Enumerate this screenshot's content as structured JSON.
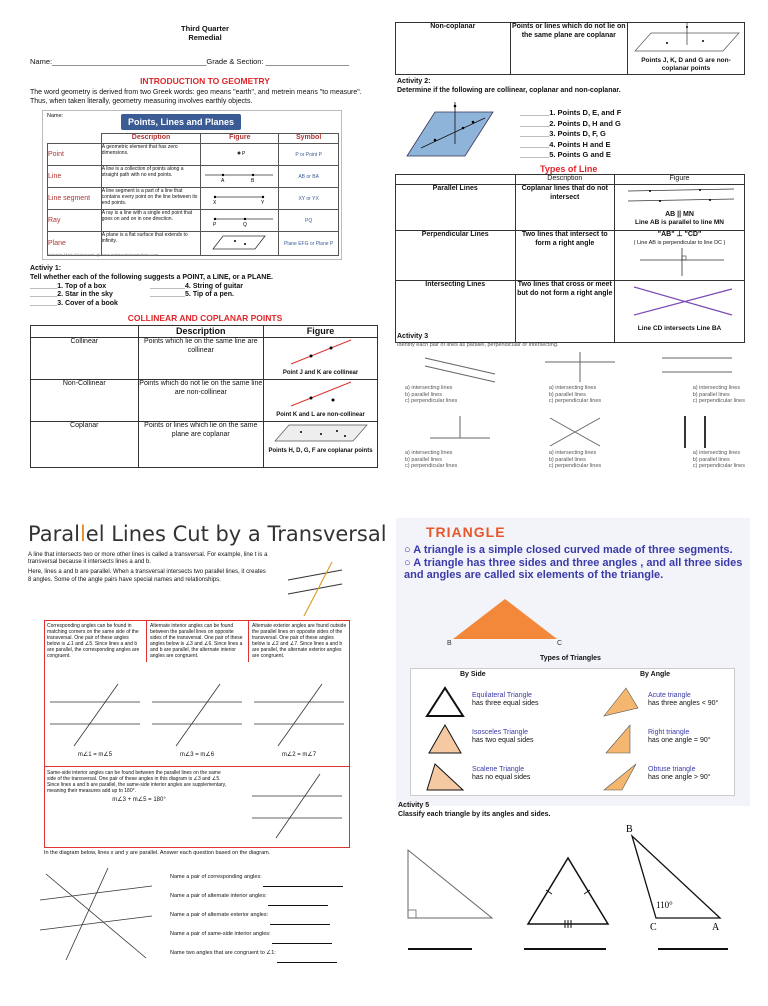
{
  "q1": {
    "title": "Third Quarter",
    "subtitle": "Remedial",
    "name_label": "Name:_____________________________________Grade & Section: ____________________",
    "intro_heading": "INTRODUCTION TO GEOMETRY",
    "intro_text": "The word geometry is derived from two Greek words: geo means \"earth\", and metrein means \"to measure\". Thus, when taken literally, geometry measuring involves earthly objects.",
    "plp_title": "Points, Lines and Planes",
    "plp_name": "Name:",
    "plp_headers": [
      "Description",
      "Figure",
      "Symbol"
    ],
    "plp_rows": [
      {
        "term": "Point",
        "desc": "A geometric element that has zero dimensions.",
        "symbol": "P or Point P"
      },
      {
        "term": "Line",
        "desc": "A line is a collection of points along a straight path with no end points.",
        "symbol": "AB or BA"
      },
      {
        "term": "Line segment",
        "desc": "A line segment is a part of a line that contains every point on the line between its end points.",
        "symbol": "XY or YX"
      },
      {
        "term": "Ray",
        "desc": "A ray is a line with a single end point that goes on and on in one direction.",
        "symbol": "PQ"
      },
      {
        "term": "Plane",
        "desc": "A plane is a flat surface that extends to infinity.",
        "symbol": "Plane EFG or Plane P"
      }
    ],
    "plp_footer": "Printable Math Worksheets @ www.mathworksheets4kids.com",
    "act1_title": "Activiy 1:",
    "act1_instr": "Tell whether each of the following suggests a POINT, a LINE, or a PLANE.",
    "act1_items": [
      "_______1.  Top of a box",
      "_________4. String of guitar",
      "_______2. Star in the sky",
      "_________5. Tip of a pen.",
      "_______3. Cover of a book"
    ],
    "coll_heading": "COLLINEAR AND COPLANAR POINTS",
    "coll_headers": [
      "Description",
      "Figure"
    ],
    "coll_rows": [
      {
        "term": "Collinear",
        "desc": "Points which lie on the same line are collinear",
        "caption": "Point J and K are collinear"
      },
      {
        "term": "Non-Collinear",
        "desc": "Points which do not lie on the same line are non-collinear",
        "caption": "Point K and L are non-collinear"
      },
      {
        "term": "Coplanar",
        "desc": "Points  or lines which  lie on the same plane  are coplanar",
        "caption": "Points H, D, G, F are coplanar points"
      }
    ]
  },
  "q2": {
    "noncop_term": "Non-coplanar",
    "noncop_desc": "Points  or lines which do not lie on the same plane  are coplanar",
    "noncop_caption": "Points J, K, D and G are non-coplanar points",
    "act2_title": "Activity 2:",
    "act2_instr": "Determine if the following are collinear, coplanar and non-coplanar.",
    "act2_items": [
      "_______1.  Points D, E, and F",
      "_______2.  Points D, H and G",
      "_______3. Points D, F, G",
      "_______4. Points H and E",
      "_______5. Points G and  E"
    ],
    "types_heading": "Types of Line",
    "types_headers": [
      "Description",
      "Figure"
    ],
    "types_rows": [
      {
        "term": "Parallel Lines",
        "desc": "Coplanar lines that do not intersect",
        "caption": "Line AB is parallel to line MN",
        "symbol": "AB || MN"
      },
      {
        "term": "Perpendicular Lines",
        "desc": "Two lines that intersect to form a right angle",
        "caption": "( Line AB is perpendicular to line DC )",
        "symbol": "\"AB\" ⊥ \"CD\""
      },
      {
        "term": "Intersecting Lines",
        "desc": "Two lines that cross or meet but do not form a right angle",
        "caption": "Line CD intersects Line BA"
      }
    ],
    "act3_title": "Activity 3",
    "act3_instr": "Identify each pair of lines as parallel, perpendicular or intersecting.",
    "act3_options": [
      "a)    intersecting lines",
      "b)    parallel lines",
      "c)    perpendicular lines"
    ]
  },
  "q3": {
    "title_a": "Paral",
    "title_b": "l",
    "title_c": "el Lines Cut by a Transversal",
    "p1": "A line that intersects two or more other lines is called a transversal. For example, line t is a transversal because it intersects lines a and b.",
    "p2": "Here, lines a and b are parallel. When a transversal intersects two parallel lines, it creates 8 angles. Some of the angle pairs have special names and relationships.",
    "boxes": [
      {
        "text": "Corresponding angles can be found in matching corners on the same side of the transversal. One pair of these angles below is ∠1 and ∠5. Since lines a and b are parallel, the corresponding angles are congruent.",
        "eq": "m∠1 = m∠5"
      },
      {
        "text": "Alternate interior angles can be found between the parallel lines on opposite sides of the transversal. One pair of these angles below is ∠3 and ∠6. Since lines a and b are parallel, the alternate interior angles are congruent.",
        "eq": "m∠3 = m∠6"
      },
      {
        "text": "Alternate exterior angles are found outside the parallel lines on opposite sides of the transversal. One pair of these angles below is ∠2 and ∠7. Since lines a and b are parallel, the alternate exterior angles are congruent.",
        "eq": "m∠2 = m∠7"
      }
    ],
    "same_side": {
      "text": "Same-side interior angles can be found between the parallel lines on the same side of the transversal. One pair of these angles in this diagram is ∠3 and ∠5. Since lines a and b are parallel, the same-side interior angles are supplementary, meaning their measures add up to 180°.",
      "eq": "m∠3 + m∠5 = 180°"
    },
    "diagram_instr": "In the diagram below, lines x and y are parallel. Answer each question based on the diagram.",
    "questions": [
      "Name a pair of corresponding angles:",
      "Name a pair of alternate interior angles:",
      "Name a pair of alternate exterior angles:",
      "Name a pair of same-side interior angles:",
      "Name two angles that are congruent to ∠1:"
    ]
  },
  "q4": {
    "title": "TRIANGLE",
    "bullets": [
      "A triangle is a simple closed curved made of three segments.",
      "A triangle has three sides and three angles , and all three sides and angles are called six elements of the triangle."
    ],
    "types_title": "Types of Triangles",
    "by_side": "By Side",
    "by_angle": "By Angle",
    "side_types": [
      {
        "name": "Equilateral Triangle",
        "desc": "has three equal sides"
      },
      {
        "name": "Isosceles Triangle",
        "desc": "has two equal sides"
      },
      {
        "name": "Scalene Triangle",
        "desc": "has no equal sides"
      }
    ],
    "angle_types": [
      {
        "name": "Acute triangle",
        "desc": "has three angles < 90°"
      },
      {
        "name": "Right triangle",
        "desc": "has one angle = 90°"
      },
      {
        "name": "Obtuse triangle",
        "desc": "has one angle > 90°"
      }
    ],
    "act5_title": "Activity 5",
    "act5_instr": "Classify each triangle by its angles and sides.",
    "obtuse_angle": "110°"
  }
}
